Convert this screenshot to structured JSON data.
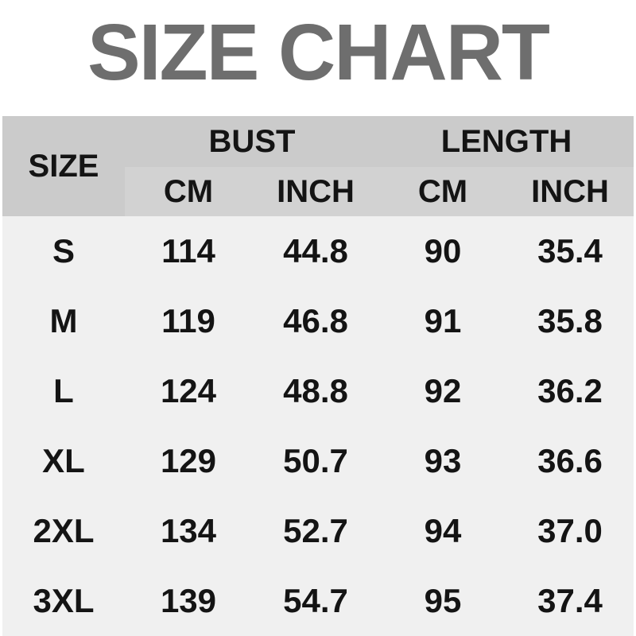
{
  "title": "SIZE CHART",
  "table": {
    "size_header": "SIZE",
    "groups": [
      {
        "label": "BUST",
        "sub": [
          "CM",
          "INCH"
        ]
      },
      {
        "label": "LENGTH",
        "sub": [
          "CM",
          "INCH"
        ]
      }
    ],
    "rows": [
      {
        "size": "S",
        "bust_cm": "114",
        "bust_inch": "44.8",
        "length_cm": "90",
        "length_inch": "35.4"
      },
      {
        "size": "M",
        "bust_cm": "119",
        "bust_inch": "46.8",
        "length_cm": "91",
        "length_inch": "35.8"
      },
      {
        "size": "L",
        "bust_cm": "124",
        "bust_inch": "48.8",
        "length_cm": "92",
        "length_inch": "36.2"
      },
      {
        "size": "XL",
        "bust_cm": "129",
        "bust_inch": "50.7",
        "length_cm": "93",
        "length_inch": "36.6"
      },
      {
        "size": "2XL",
        "bust_cm": "134",
        "bust_inch": "52.7",
        "length_cm": "94",
        "length_inch": "37.0"
      },
      {
        "size": "3XL",
        "bust_cm": "139",
        "bust_inch": "54.7",
        "length_cm": "95",
        "length_inch": "37.4"
      }
    ]
  },
  "colors": {
    "title_gray": "#6e6e6e",
    "header_bg": "#cbcbcb",
    "subheader_bg": "#d2d2d2",
    "body_bg": "#f0f0f0",
    "text": "#141414",
    "page_bg": "#ffffff"
  },
  "chart_data": {
    "type": "table",
    "title": "SIZE CHART",
    "columns": [
      "SIZE",
      "BUST CM",
      "BUST INCH",
      "LENGTH CM",
      "LENGTH INCH"
    ],
    "rows": [
      [
        "S",
        114,
        44.8,
        90,
        35.4
      ],
      [
        "M",
        119,
        46.8,
        91,
        35.8
      ],
      [
        "L",
        124,
        48.8,
        92,
        36.2
      ],
      [
        "XL",
        129,
        50.7,
        93,
        36.6
      ],
      [
        "2XL",
        134,
        52.7,
        94,
        37.0
      ],
      [
        "3XL",
        139,
        54.7,
        95,
        37.4
      ]
    ]
  }
}
